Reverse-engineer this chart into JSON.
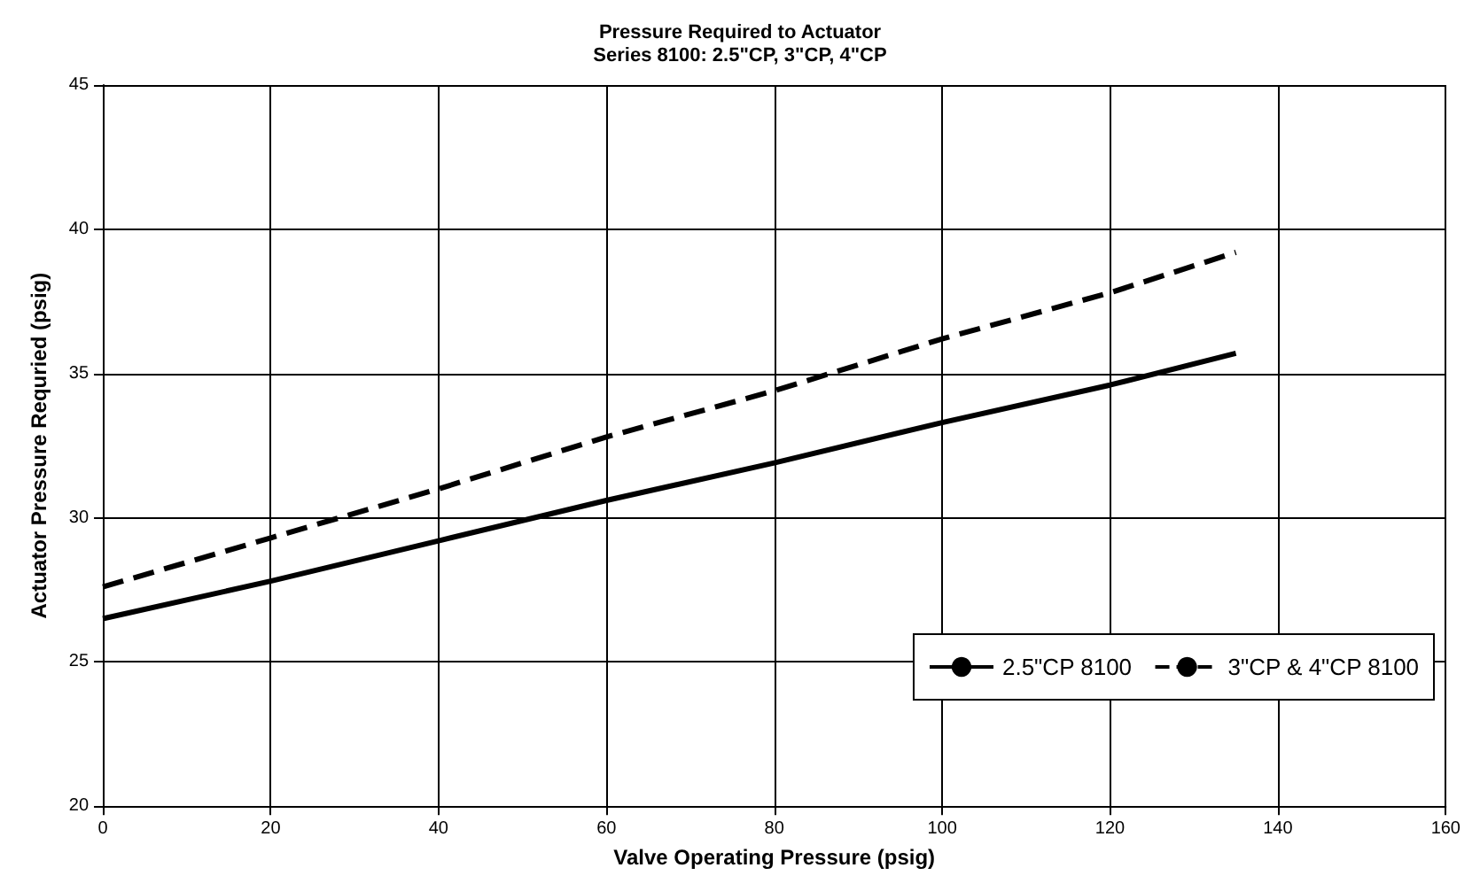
{
  "chart_data": {
    "type": "line",
    "title": "Pressure Required to Actuator",
    "subtitle": "Series 8100: 2.5\"CP, 3\"CP, 4\"CP",
    "xlabel": "Valve Operating Pressure (psig)",
    "ylabel": "Actuator Pressure Requried (psig)",
    "x": [
      0,
      20,
      40,
      60,
      80,
      100,
      120,
      135
    ],
    "series": [
      {
        "name": "2.5\"CP 8100",
        "color": "#000000",
        "line_style": "solid",
        "values": [
          26.5,
          27.8,
          29.2,
          30.6,
          31.9,
          33.3,
          34.6,
          35.7
        ]
      },
      {
        "name": "3\"CP & 4\"CP 8100",
        "color": "#000000",
        "line_style": "dashed",
        "values": [
          27.6,
          29.3,
          31.0,
          32.8,
          34.4,
          36.2,
          37.8,
          39.2
        ]
      }
    ],
    "xlim": [
      0,
      160
    ],
    "xticks": [
      0,
      20,
      40,
      60,
      80,
      100,
      120,
      140,
      160
    ],
    "ylim": [
      20,
      45
    ],
    "yticks": [
      20,
      25,
      30,
      35,
      40,
      45
    ],
    "grid": true,
    "legend": "bottom right",
    "marker": "none"
  }
}
